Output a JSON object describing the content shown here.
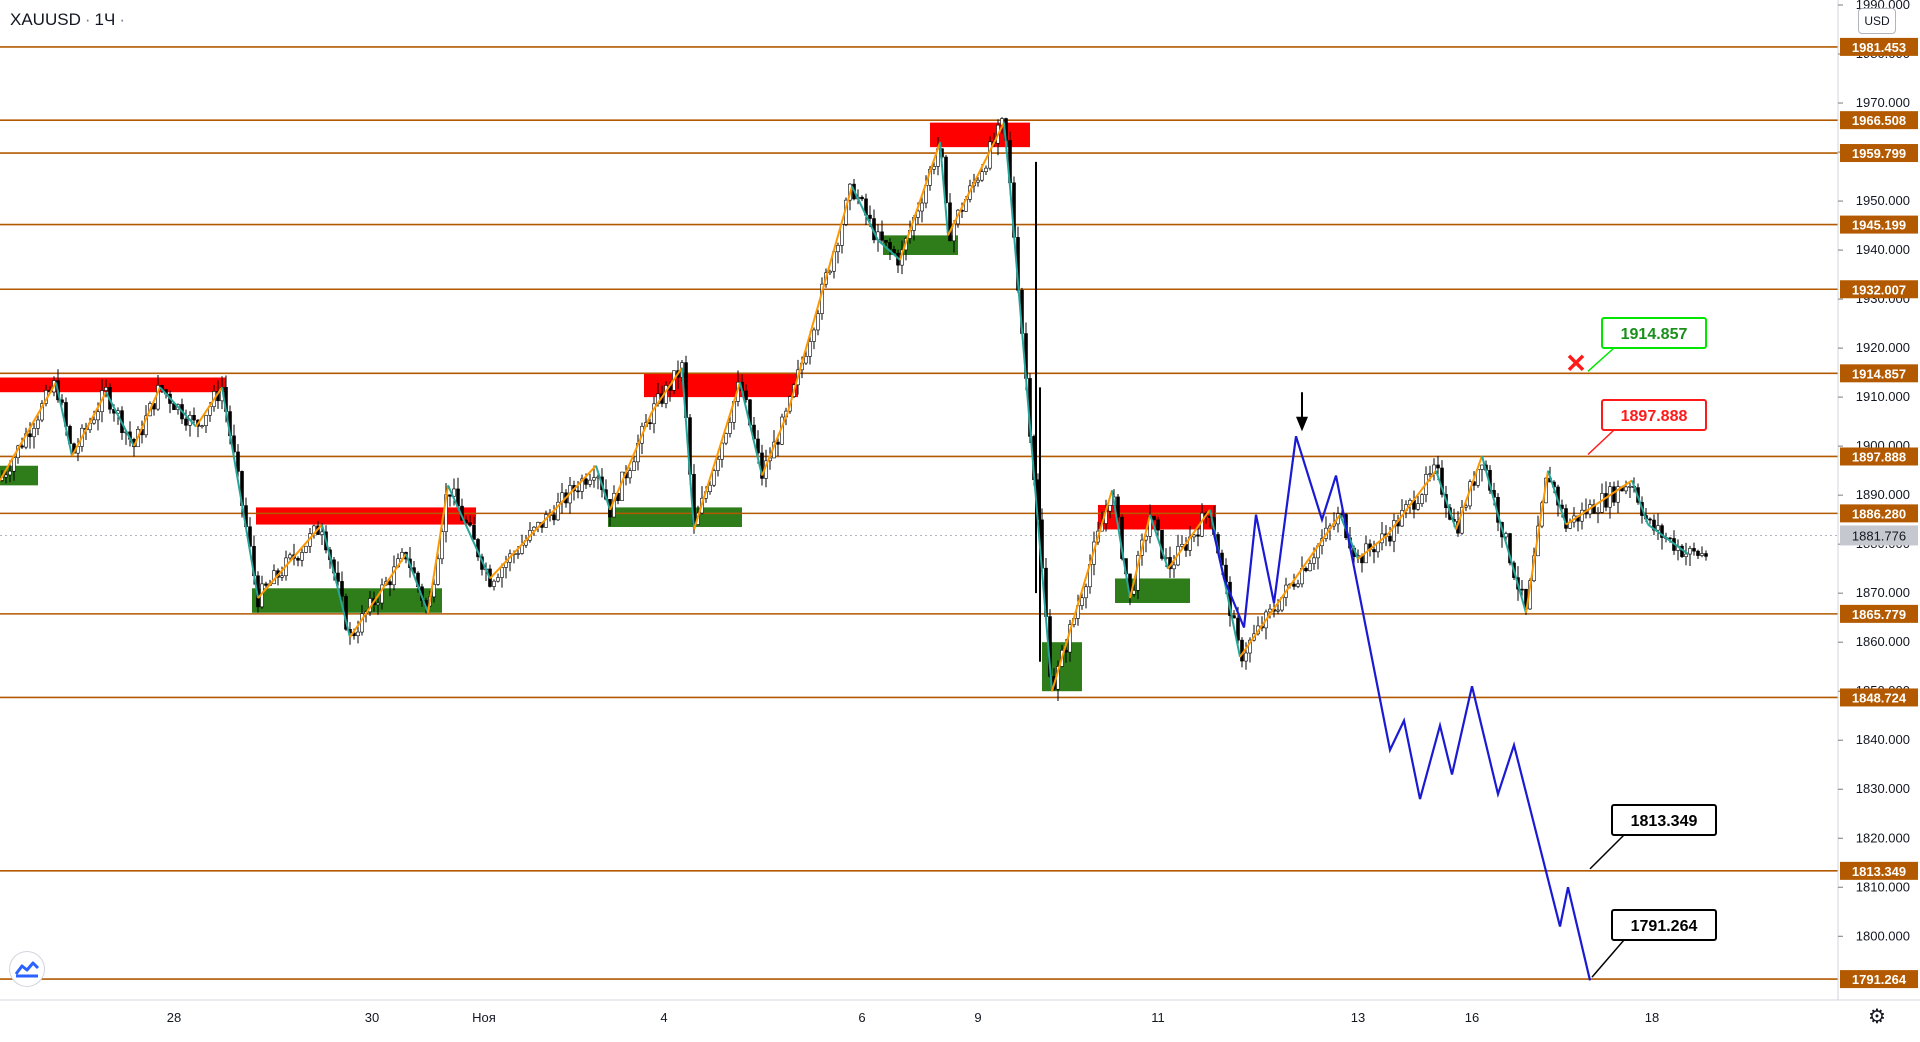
{
  "header": {
    "symbol": "XAUUSD",
    "interval": "1Ч",
    "currency": "USD"
  },
  "colors": {
    "level": "#b35a00",
    "level_label_bg": "#b35a00",
    "bull": "#ffffff",
    "bear": "#000000",
    "supply": "#ff0000",
    "demand": "#2e7d1a",
    "zigzag_up": "#ff9800",
    "zigzag_down": "#26a69a",
    "projection": "#1a1ad4",
    "target_green": "#00e600",
    "target_red": "#ff1a1a",
    "target_black": "#000000",
    "price": "#c6c8cf"
  },
  "chart_data": {
    "type": "candlestick",
    "symbol": "XAUUSD",
    "interval": "1Ч",
    "ylim": [
      1787,
      1990
    ],
    "y_ticks": [
      1800,
      1810,
      1820,
      1830,
      1840,
      1850,
      1860,
      1870,
      1880,
      1890,
      1900,
      1910,
      1920,
      1930,
      1940,
      1950,
      1960,
      1970,
      1980,
      1990
    ],
    "x_ticks": [
      "28",
      "30",
      "Ноя",
      "4",
      "6",
      "9",
      "11",
      "13",
      "16",
      "18"
    ],
    "current_price": 1881.776,
    "levels": [
      1981.453,
      1966.508,
      1959.799,
      1945.199,
      1932.007,
      1914.857,
      1897.888,
      1886.28,
      1865.779,
      1848.724,
      1813.349,
      1791.264
    ],
    "callouts": [
      {
        "label": "1914.857",
        "style": "green"
      },
      {
        "label": "1897.888",
        "style": "red"
      },
      {
        "label": "1813.349",
        "style": "black"
      },
      {
        "label": "1791.264",
        "style": "black"
      }
    ],
    "supply_zones": [
      {
        "x": [
          0,
          226
        ],
        "y": [
          1911,
          1914
        ]
      },
      {
        "x": [
          256,
          476
        ],
        "y": [
          1884,
          1887.5
        ]
      },
      {
        "x": [
          644,
          798
        ],
        "y": [
          1910,
          1915
        ]
      },
      {
        "x": [
          930,
          1030
        ],
        "y": [
          1961,
          1966
        ]
      },
      {
        "x": [
          1098,
          1216
        ],
        "y": [
          1883,
          1888
        ]
      }
    ],
    "demand_zones": [
      {
        "x": [
          0,
          38
        ],
        "y": [
          1892,
          1896
        ]
      },
      {
        "x": [
          252,
          442
        ],
        "y": [
          1866,
          1871
        ]
      },
      {
        "x": [
          608,
          742
        ],
        "y": [
          1883.5,
          1887.5
        ]
      },
      {
        "x": [
          883,
          958
        ],
        "y": [
          1939,
          1943
        ]
      },
      {
        "x": [
          1042,
          1082
        ],
        "y": [
          1850,
          1860
        ]
      },
      {
        "x": [
          1115,
          1190
        ],
        "y": [
          1868,
          1873
        ]
      }
    ],
    "zigzag": [
      [
        0,
        1893
      ],
      [
        56,
        1913
      ],
      [
        72,
        1898
      ],
      [
        106,
        1911
      ],
      [
        134,
        1900
      ],
      [
        160,
        1912
      ],
      [
        196,
        1904
      ],
      [
        222,
        1912
      ],
      [
        258,
        1869
      ],
      [
        322,
        1884
      ],
      [
        350,
        1861
      ],
      [
        406,
        1878
      ],
      [
        428,
        1866
      ],
      [
        448,
        1892
      ],
      [
        490,
        1873
      ],
      [
        596,
        1896
      ],
      [
        610,
        1887
      ],
      [
        652,
        1907
      ],
      [
        682,
        1916
      ],
      [
        694,
        1883
      ],
      [
        740,
        1913
      ],
      [
        762,
        1894
      ],
      [
        788,
        1907
      ],
      [
        852,
        1953
      ],
      [
        878,
        1942
      ],
      [
        900,
        1938
      ],
      [
        940,
        1962
      ],
      [
        948,
        1943
      ],
      [
        1004,
        1966
      ],
      [
        1010,
        1953
      ],
      [
        1052,
        1850
      ],
      [
        1112,
        1891
      ],
      [
        1130,
        1869
      ],
      [
        1150,
        1886
      ],
      [
        1168,
        1875
      ],
      [
        1210,
        1887
      ],
      [
        1240,
        1857
      ],
      [
        1340,
        1886
      ],
      [
        1358,
        1877
      ],
      [
        1388,
        1882
      ],
      [
        1436,
        1895
      ],
      [
        1456,
        1883
      ],
      [
        1482,
        1898
      ],
      [
        1498,
        1886
      ],
      [
        1526,
        1866
      ],
      [
        1548,
        1895
      ],
      [
        1566,
        1884
      ],
      [
        1632,
        1893
      ],
      [
        1648,
        1884
      ],
      [
        1688,
        1878
      ]
    ],
    "projection": [
      [
        1213,
        1883
      ],
      [
        1224,
        1873
      ],
      [
        1244,
        1863
      ],
      [
        1256,
        1886
      ],
      [
        1274,
        1868
      ],
      [
        1296,
        1902
      ],
      [
        1322,
        1885
      ],
      [
        1336,
        1894
      ],
      [
        1390,
        1838
      ],
      [
        1404,
        1844
      ],
      [
        1420,
        1828
      ],
      [
        1440,
        1843
      ],
      [
        1452,
        1833
      ],
      [
        1472,
        1851
      ],
      [
        1498,
        1829
      ],
      [
        1514,
        1839
      ],
      [
        1560,
        1802
      ],
      [
        1568,
        1810
      ],
      [
        1590,
        1791
      ]
    ],
    "grid": false,
    "legend": "none"
  },
  "labels": {
    "gear": "settings"
  }
}
